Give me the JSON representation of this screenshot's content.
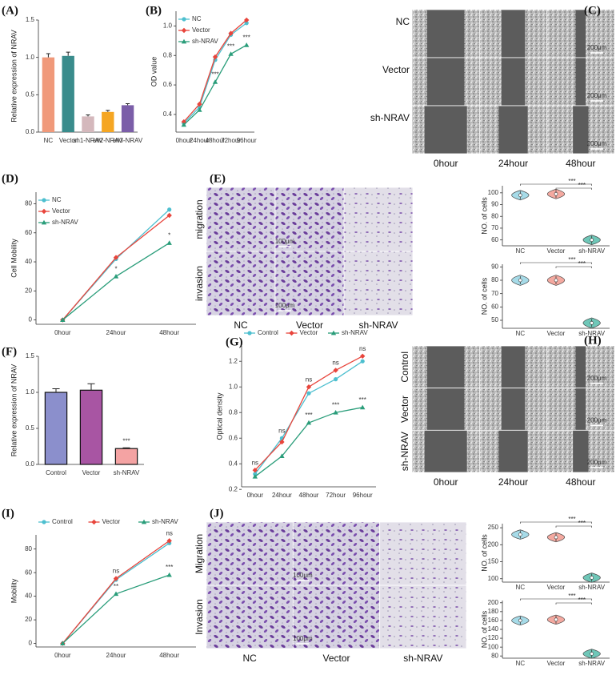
{
  "chart_data": [
    {
      "type": "bar",
      "panel": "(A)",
      "ylabel": "Relative expression of NRAV",
      "categories": [
        "NC",
        "Vector",
        "sh1-NRAV",
        "sh2-NRAV",
        "sh3-NRAV"
      ],
      "values": [
        1.0,
        1.02,
        0.21,
        0.27,
        0.36
      ],
      "errors": [
        0.05,
        0.05,
        0.02,
        0.02,
        0.02
      ],
      "colors": [
        "#f0997a",
        "#3a8c8c",
        "#d4b8bc",
        "#f5a623",
        "#7b5ea8"
      ],
      "ylim": [
        0,
        1.5
      ],
      "yticks": [
        {
          "value": 0,
          "label": "0.0"
        },
        {
          "value": 0.5,
          "label": "0.5"
        },
        {
          "value": 1,
          "label": "1.0"
        },
        {
          "value": 1.5,
          "label": "1.5"
        }
      ]
    },
    {
      "type": "line",
      "panel": "(B)",
      "ylabel": "OD value",
      "categories": [
        "0hour",
        "24hour",
        "48hour",
        "72hour",
        "96hour"
      ],
      "series": [
        {
          "name": "NC",
          "color": "#4dbfcf",
          "values": [
            0.34,
            0.45,
            0.77,
            0.94,
            1.02
          ]
        },
        {
          "name": "Vector",
          "color": "#e8453c",
          "values": [
            0.35,
            0.47,
            0.79,
            0.95,
            1.04
          ]
        },
        {
          "name": "sh-NRAV",
          "color": "#2a9d7a",
          "values": [
            0.33,
            0.43,
            0.62,
            0.81,
            0.87
          ]
        }
      ],
      "ylim": [
        0.28,
        1.1
      ],
      "yticks": [
        0.4,
        0.6,
        0.8,
        {
          "value": 1,
          "label": "1.0"
        }
      ],
      "legend": "upper left",
      "point_labels": [
        [
          null,
          null,
          "***",
          "***",
          "***"
        ]
      ]
    },
    {
      "type": "line",
      "panel": "(D)",
      "ylabel": "Cell Mobility",
      "categories": [
        "0hour",
        "24hour",
        "48hour"
      ],
      "series": [
        {
          "name": "NC",
          "color": "#4dbfcf",
          "values": [
            0,
            42,
            76
          ]
        },
        {
          "name": "Vector",
          "color": "#e8453c",
          "values": [
            0,
            43,
            72
          ]
        },
        {
          "name": "sh-NRAV",
          "color": "#2a9d7a",
          "values": [
            0,
            30,
            53
          ]
        }
      ],
      "ylim": [
        -3,
        88
      ],
      "yticks": [
        0,
        20,
        40,
        60,
        80
      ],
      "legend": "upper left",
      "point_labels": [
        [
          null,
          "*",
          "*"
        ]
      ]
    },
    {
      "type": "bar",
      "panel": "(F)",
      "ylabel": "Relative expression of NRAV",
      "categories": [
        "Control",
        "Vector",
        "sh-NRAV"
      ],
      "values": [
        1.0,
        1.03,
        0.22
      ],
      "errors": [
        0.05,
        0.09,
        0.01
      ],
      "colors": [
        "#8b8fcc",
        "#a855a3",
        "#f4a3a3"
      ],
      "ylim": [
        0,
        1.5
      ],
      "yticks": [
        {
          "value": 0,
          "label": "0.0"
        },
        {
          "value": 0.5,
          "label": "0.5"
        },
        {
          "value": 1,
          "label": "1.0"
        },
        {
          "value": 1.5,
          "label": "1.5"
        }
      ],
      "point_labels": [
        [
          null,
          null,
          "***"
        ]
      ]
    },
    {
      "type": "line",
      "panel": "(G)",
      "ylabel": "Optical density",
      "categories": [
        "0hour",
        "24hour",
        "48hour",
        "72hour",
        "96hour"
      ],
      "series": [
        {
          "name": "Control",
          "color": "#4dbfcf",
          "values": [
            0.32,
            0.6,
            0.95,
            1.06,
            1.2
          ]
        },
        {
          "name": "Vector",
          "color": "#e8453c",
          "values": [
            0.35,
            0.57,
            1.0,
            1.13,
            1.24
          ]
        },
        {
          "name": "sh-NRAV",
          "color": "#2a9d7a",
          "values": [
            0.3,
            0.46,
            0.72,
            0.8,
            0.84
          ]
        }
      ],
      "ylim": [
        0.22,
        1.32
      ],
      "yticks": [
        0.2,
        0.4,
        0.6,
        0.8,
        {
          "value": 1,
          "label": "1.0"
        },
        1.2
      ],
      "legend": "top",
      "point_labels": [
        [
          "ns",
          "ns",
          "ns",
          "ns",
          "ns"
        ],
        [
          null,
          null,
          "***",
          "***",
          "***"
        ]
      ]
    },
    {
      "type": "line",
      "panel": "(I)",
      "ylabel": "Mobility",
      "categories": [
        "0hour",
        "24hour",
        "48hour"
      ],
      "series": [
        {
          "name": "Control",
          "color": "#4dbfcf",
          "values": [
            0,
            54,
            85
          ]
        },
        {
          "name": "Vector",
          "color": "#e8453c",
          "values": [
            0,
            55,
            87
          ]
        },
        {
          "name": "sh-NRAV",
          "color": "#2a9d7a",
          "values": [
            0,
            42,
            58
          ]
        }
      ],
      "ylim": [
        -3,
        92
      ],
      "yticks": [
        0,
        20,
        40,
        60,
        80
      ],
      "legend": "top",
      "point_labels": [
        [
          null,
          "ns",
          "ns"
        ],
        [
          null,
          "**",
          "***"
        ]
      ]
    },
    {
      "type": "violin",
      "ylabel": "NO. of cells",
      "categories": [
        "NC",
        "Vector",
        "sh-NRAV"
      ],
      "values": [
        98,
        99,
        60
      ],
      "colors": [
        "#a6dbe8",
        "#f4a9a0",
        "#6fc7b8"
      ],
      "ylim": [
        55,
        106
      ],
      "yticks": [
        60,
        70,
        80,
        90,
        100
      ],
      "brackets": [
        "***",
        "***"
      ]
    },
    {
      "type": "violin",
      "ylabel": "NO. of cells",
      "categories": [
        "NC",
        "Vector",
        "sh-NRAV"
      ],
      "values": [
        80,
        80,
        48
      ],
      "colors": [
        "#a6dbe8",
        "#f4a9a0",
        "#6fc7b8"
      ],
      "ylim": [
        44,
        92
      ],
      "yticks": [
        50,
        60,
        70,
        80,
        90
      ],
      "brackets": [
        "***",
        "***"
      ]
    },
    {
      "type": "violin",
      "ylabel": "NO. of cells",
      "categories": [
        "NC",
        "Vector",
        "sh-NRAV"
      ],
      "values": [
        230,
        222,
        103
      ],
      "colors": [
        "#a6dbe8",
        "#f4a9a0",
        "#6fc7b8"
      ],
      "ylim": [
        90,
        262
      ],
      "yticks": [
        100,
        150,
        200,
        250
      ],
      "brackets": [
        "***",
        "***"
      ]
    },
    {
      "type": "violin",
      "ylabel": "NO. of cells",
      "categories": [
        "NC",
        "Vector",
        "sh-NRAV"
      ],
      "values": [
        160,
        162,
        85
      ],
      "colors": [
        "#a6dbe8",
        "#f4a9a0",
        "#6fc7b8"
      ],
      "ylim": [
        75,
        205
      ],
      "yticks": [
        80,
        100,
        120,
        140,
        160,
        180,
        200
      ],
      "brackets": [
        "***",
        "***"
      ]
    }
  ],
  "images": [
    {
      "kind": "wound",
      "panel": "(C)",
      "rows": [
        "NC",
        "Vector",
        "sh-NRAV"
      ],
      "columns": [
        "0hour",
        "24hour",
        "48hour"
      ],
      "scale_bars": [
        "200μm",
        "200μm",
        "200μm"
      ]
    },
    {
      "kind": "transwell",
      "panel": "(E)",
      "rows": [
        "migration",
        "invasion"
      ],
      "columns": [
        "NC",
        "Vector",
        "sh-NRAV"
      ],
      "scale_bars": [
        "100μm",
        "100μm"
      ]
    },
    {
      "kind": "wound",
      "panel": "(H)",
      "rows": [
        "Control",
        "Vector",
        "sh-NRAV"
      ],
      "columns": [
        "0hour",
        "24hour",
        "48hour"
      ],
      "scale_bars": [
        "200μm",
        "200μm",
        "200μm"
      ]
    },
    {
      "kind": "transwell",
      "panel": "(J)",
      "rows": [
        "Migration",
        "Invasion"
      ],
      "columns": [
        "NC",
        "Vector",
        "sh-NRAV"
      ],
      "scale_bars": [
        "100μm",
        "100μm"
      ]
    }
  ]
}
